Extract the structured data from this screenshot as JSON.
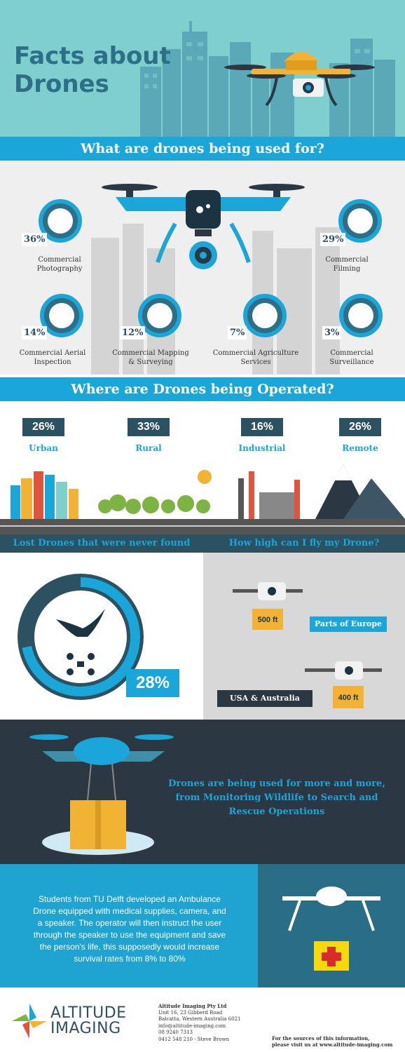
{
  "header": {
    "title_line1": "Facts about",
    "title_line2": "Drones"
  },
  "uses": {
    "title": "What are drones being used for?",
    "items": [
      {
        "pct": "36%",
        "label_line1": "Commercial",
        "label_line2": "Photography",
        "icon": "camera-icon"
      },
      {
        "pct": "29%",
        "label_line1": "Commercial",
        "label_line2": "Filming",
        "icon": "clapperboard-icon"
      },
      {
        "pct": "14%",
        "label_line1": "Commercial Aerial",
        "label_line2": "Inspection",
        "icon": "drone-icon"
      },
      {
        "pct": "12%",
        "label_line1": "Commercial Mapping",
        "label_line2": "& Surveying",
        "icon": "map-pin-icon"
      },
      {
        "pct": "7%",
        "label_line1": "Commercial Agriculture",
        "label_line2": "Services",
        "icon": "grain-sack-icon"
      },
      {
        "pct": "3%",
        "label_line1": "Commercial",
        "label_line2": "Surveillance",
        "icon": "security-camera-icon"
      }
    ]
  },
  "ops": {
    "title": "Where are Drones being Operated?",
    "items": [
      {
        "pct": "26%",
        "name": "Urban"
      },
      {
        "pct": "33%",
        "name": "Rural"
      },
      {
        "pct": "16%",
        "name": "Industrial"
      },
      {
        "pct": "26%",
        "name": "Remote"
      }
    ]
  },
  "lost": {
    "title": "Lost Drones that were never found",
    "pct": "28%",
    "fraction": 0.28
  },
  "height": {
    "title": "How high can I fly my Drone?",
    "europe_alt": "500 ft",
    "europe_label": "Parts of Europe",
    "usa_alt": "400 ft",
    "usa_label": "USA & Australia"
  },
  "dark": {
    "line1": "Drones are being used for more and more,",
    "line2": "from Monitoring Wildlife to Search and",
    "line3": "Rescue Operations"
  },
  "amb": {
    "lines": [
      "Students from TU Delft developed an Ambulance",
      "Drone equipped with medical supplies, camera, and",
      "a speaker. The operator will then instruct the user",
      "through the speaker to use the equipment and save",
      "the person's life, this supposedly would increase",
      "survival rates from 8% to 80%"
    ]
  },
  "footer": {
    "brand_line1": "ALTITUDE",
    "brand_line2": "IMAGING",
    "company": "Altitude Imaging Pty Ltd",
    "address1": "Unit 16, 23 Gibberd Road",
    "address2": "Balcatta, Western Australia 6021",
    "email": "info@altitude-imaging.com",
    "phone": "08 9240 7313",
    "mobile": "0412 548 210 - Steve Brown",
    "sources1": "For the sources of this information,",
    "sources2": "please visit us at www.altitude-imaging.com"
  },
  "colors": {
    "teal": "#7fcfcf",
    "blue": "#1aa6d8",
    "navy": "#2c5160",
    "dark": "#2b3743",
    "accent": "#f2b233"
  }
}
